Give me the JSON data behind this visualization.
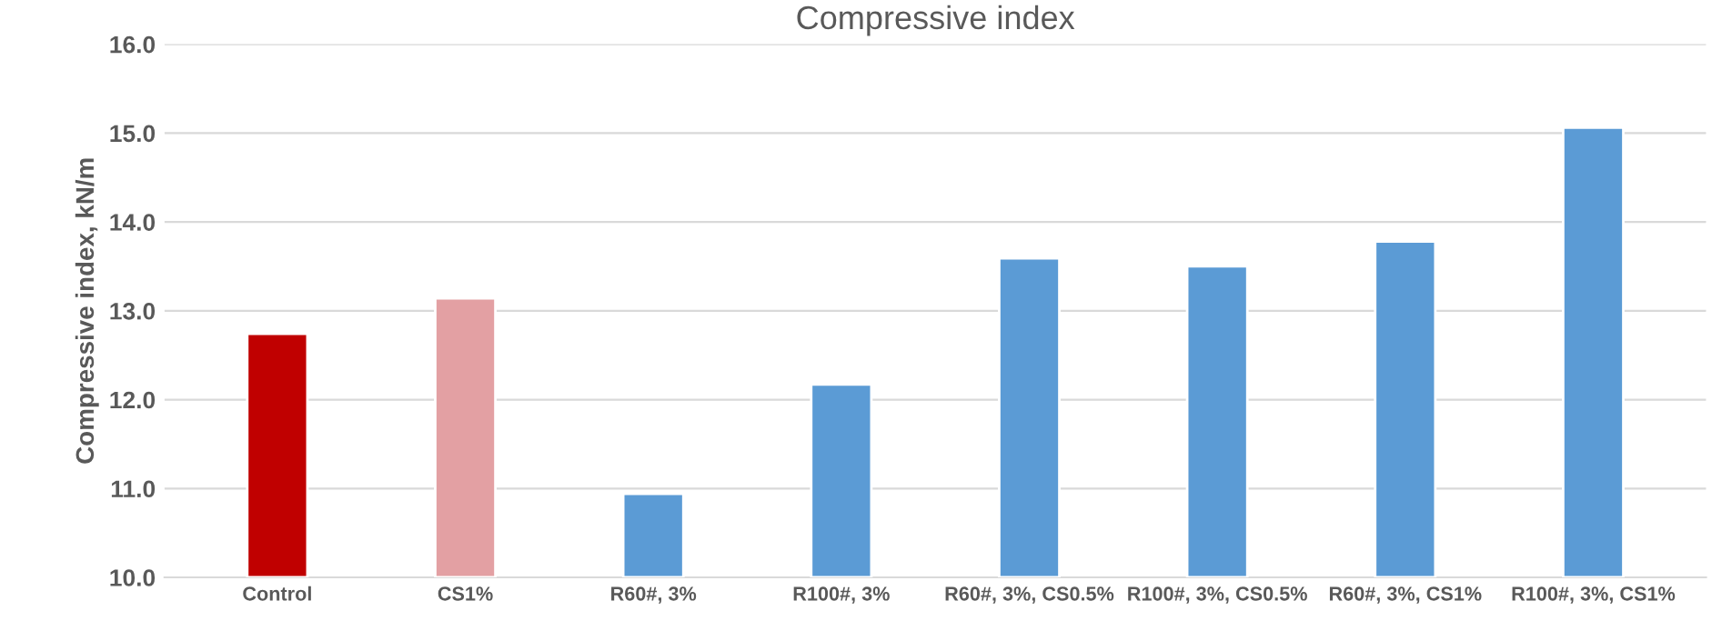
{
  "chart_data": {
    "type": "bar",
    "title": "Compressive index",
    "ylabel": "Compressive index, kN/m",
    "categories": [
      "Control",
      "CS1%",
      "R60#, 3%",
      "R100#, 3%",
      "R60#, 3%, CS0.5%",
      "R100#, 3%, CS0.5%",
      "R60#, 3%, CS1%",
      "R100#, 3%, CS1%"
    ],
    "values": [
      12.74,
      13.14,
      10.94,
      12.17,
      13.59,
      13.5,
      13.78,
      15.06
    ],
    "colors": [
      "#c00000",
      "#e3a0a3",
      "#5b9bd5",
      "#5b9bd5",
      "#5b9bd5",
      "#5b9bd5",
      "#5b9bd5",
      "#5b9bd5"
    ],
    "ylim": [
      10,
      16
    ],
    "yticks": [
      {
        "value": 10,
        "label": "10.0"
      },
      {
        "value": 11,
        "label": "11.0"
      },
      {
        "value": 12,
        "label": "12.0"
      },
      {
        "value": 13,
        "label": "13.0"
      },
      {
        "value": 14,
        "label": "14.0"
      },
      {
        "value": 15,
        "label": "15.0"
      },
      {
        "value": 16,
        "label": "16.0"
      }
    ],
    "grid": "y"
  }
}
